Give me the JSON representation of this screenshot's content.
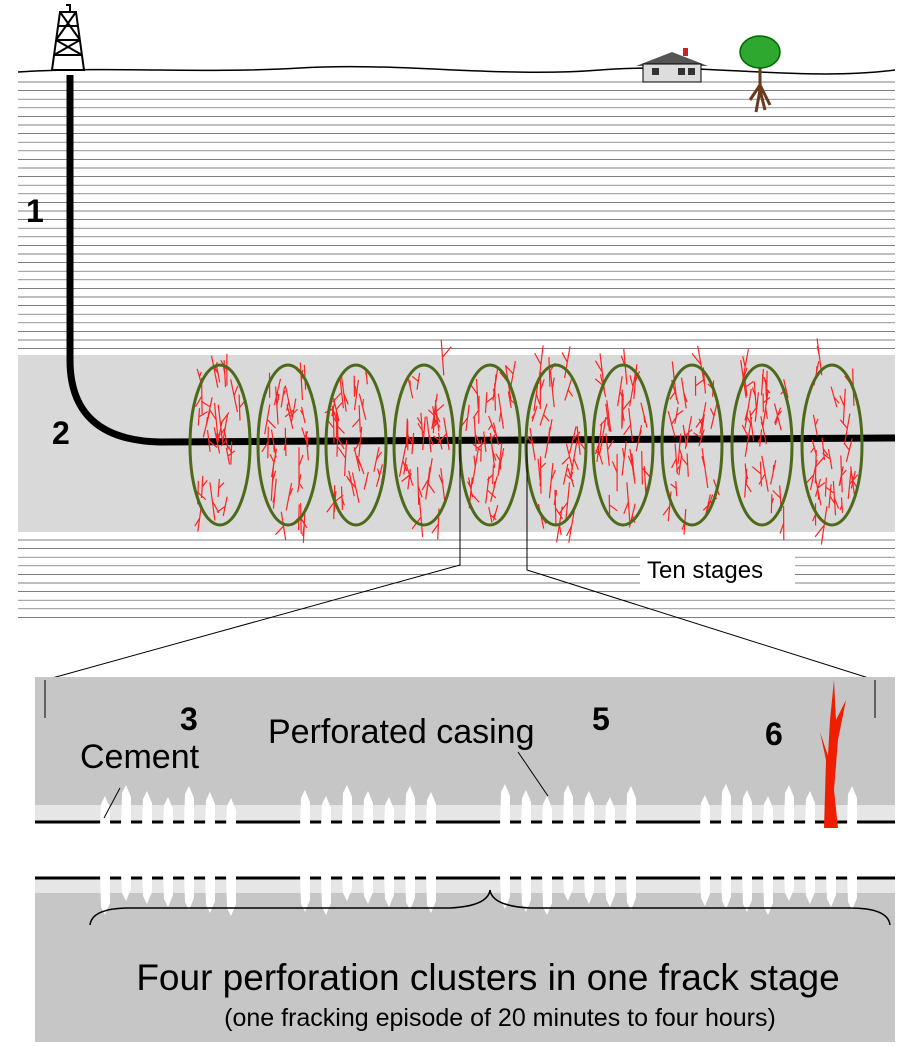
{
  "markers": [
    "1",
    "2",
    "3",
    "5",
    "6"
  ],
  "annotations": {
    "cement": "Cement",
    "perforated_casing": "Perforated casing",
    "ten_stages": "Ten stages"
  },
  "caption": {
    "title": "Four perforation clusters in one frack stage",
    "subtitle": "(one fracking episode of 20 minutes to four hours)"
  }
}
